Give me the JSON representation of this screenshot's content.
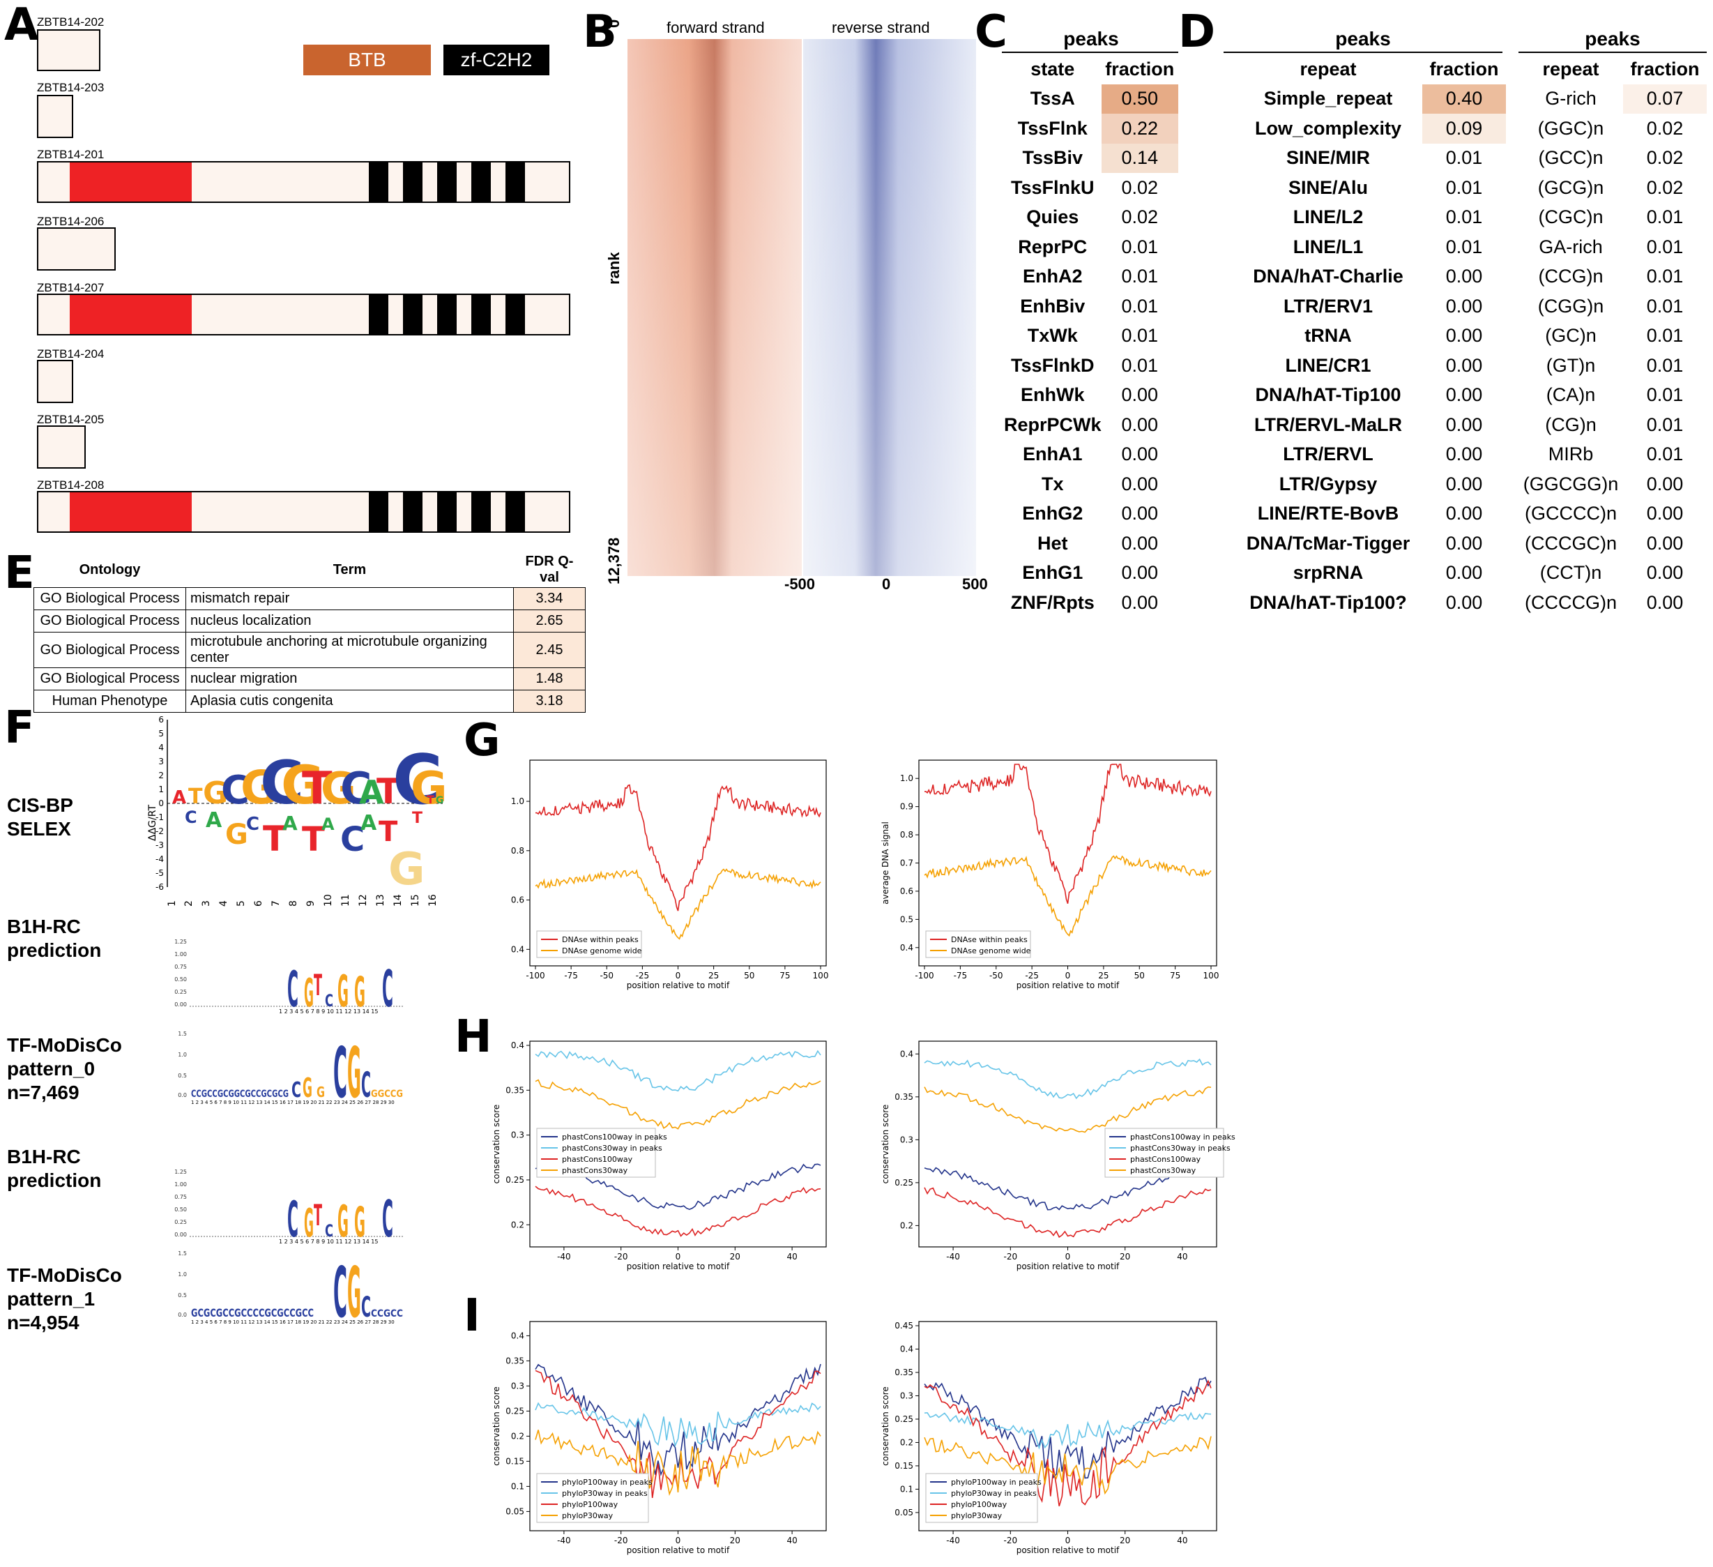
{
  "panels": {
    "A": "A",
    "B": "B",
    "C": "C",
    "D": "D",
    "E": "E",
    "F": "F",
    "G": "G",
    "H": "H",
    "I": "I"
  },
  "panelA": {
    "legend_btb": "BTB",
    "legend_zf": "zf-C2H2",
    "btb_color": "#c9642e",
    "zf_color": "#000000",
    "transcripts": [
      "ZBTB14-202",
      "ZBTB14-203",
      "ZBTB14-201",
      "ZBTB14-206",
      "ZBTB14-207",
      "ZBTB14-204",
      "ZBTB14-205",
      "ZBTB14-208"
    ]
  },
  "panelB": {
    "forward": "forward strand",
    "reverse": "reverse strand",
    "ytop": "0",
    "ylabel": "rank",
    "ybottom": "12,378",
    "xm500": "-500",
    "x0": "0",
    "x500": "500"
  },
  "panelC": {
    "peaks": "peaks",
    "state": "state",
    "fraction": "fraction",
    "rows": [
      {
        "s": "TssA",
        "f": "0.50"
      },
      {
        "s": "TssFlnk",
        "f": "0.22"
      },
      {
        "s": "TssBiv",
        "f": "0.14"
      },
      {
        "s": "TssFlnkU",
        "f": "0.02"
      },
      {
        "s": "Quies",
        "f": "0.02"
      },
      {
        "s": "ReprPC",
        "f": "0.01"
      },
      {
        "s": "EnhA2",
        "f": "0.01"
      },
      {
        "s": "EnhBiv",
        "f": "0.01"
      },
      {
        "s": "TxWk",
        "f": "0.01"
      },
      {
        "s": "TssFlnkD",
        "f": "0.01"
      },
      {
        "s": "EnhWk",
        "f": "0.00"
      },
      {
        "s": "ReprPCWk",
        "f": "0.00"
      },
      {
        "s": "EnhA1",
        "f": "0.00"
      },
      {
        "s": "Tx",
        "f": "0.00"
      },
      {
        "s": "EnhG2",
        "f": "0.00"
      },
      {
        "s": "Het",
        "f": "0.00"
      },
      {
        "s": "EnhG1",
        "f": "0.00"
      },
      {
        "s": "ZNF/Rpts",
        "f": "0.00"
      }
    ]
  },
  "panelD": {
    "peaks": "peaks",
    "repeat": "repeat",
    "fraction": "fraction",
    "rows": [
      {
        "r": "Simple_repeat",
        "f": "0.40",
        "r2": "G-rich",
        "f2": "0.07"
      },
      {
        "r": "Low_complexity",
        "f": "0.09",
        "r2": "(GGC)n",
        "f2": "0.02"
      },
      {
        "r": "SINE/MIR",
        "f": "0.01",
        "r2": "(GCC)n",
        "f2": "0.02"
      },
      {
        "r": "SINE/Alu",
        "f": "0.01",
        "r2": "(GCG)n",
        "f2": "0.02"
      },
      {
        "r": "LINE/L2",
        "f": "0.01",
        "r2": "(CGC)n",
        "f2": "0.01"
      },
      {
        "r": "LINE/L1",
        "f": "0.01",
        "r2": "GA-rich",
        "f2": "0.01"
      },
      {
        "r": "DNA/hAT-Charlie",
        "f": "0.00",
        "r2": "(CCG)n",
        "f2": "0.01"
      },
      {
        "r": "LTR/ERV1",
        "f": "0.00",
        "r2": "(CGG)n",
        "f2": "0.01"
      },
      {
        "r": "tRNA",
        "f": "0.00",
        "r2": "(GC)n",
        "f2": "0.01"
      },
      {
        "r": "LINE/CR1",
        "f": "0.00",
        "r2": "(GT)n",
        "f2": "0.01"
      },
      {
        "r": "DNA/hAT-Tip100",
        "f": "0.00",
        "r2": "(CA)n",
        "f2": "0.01"
      },
      {
        "r": "LTR/ERVL-MaLR",
        "f": "0.00",
        "r2": "(CG)n",
        "f2": "0.01"
      },
      {
        "r": "LTR/ERVL",
        "f": "0.00",
        "r2": "MIRb",
        "f2": "0.01"
      },
      {
        "r": "LTR/Gypsy",
        "f": "0.00",
        "r2": "(GGCGG)n",
        "f2": "0.00"
      },
      {
        "r": "LINE/RTE-BovB",
        "f": "0.00",
        "r2": "(GCCCC)n",
        "f2": "0.00"
      },
      {
        "r": "DNA/TcMar-Tigger",
        "f": "0.00",
        "r2": "(CCCGC)n",
        "f2": "0.00"
      },
      {
        "r": "srpRNA",
        "f": "0.00",
        "r2": "(CCT)n",
        "f2": "0.00"
      },
      {
        "r": "DNA/hAT-Tip100?",
        "f": "0.00",
        "r2": "(CCCCG)n",
        "f2": "0.00"
      }
    ]
  },
  "panelE": {
    "h1": "Ontology",
    "h2": "Term",
    "h3": "FDR Q-val",
    "rows": [
      {
        "o": "GO Biological Process",
        "t": "mismatch repair",
        "q": "3.34"
      },
      {
        "o": "GO Biological Process",
        "t": "nucleus localization",
        "q": "2.65"
      },
      {
        "o": "GO Biological Process",
        "t": "microtubule anchoring at microtubule organizing center",
        "q": "2.45"
      },
      {
        "o": "GO Biological Process",
        "t": "nuclear migration",
        "q": "1.48"
      },
      {
        "o": "Human Phenotype",
        "t": "Aplasia cutis congenita",
        "q": "3.18"
      }
    ]
  },
  "panelF": {
    "l1a": "CIS-BP",
    "l1b": "SELEX",
    "l2a": "B1H-RC",
    "l2b": "prediction",
    "l3a": "TF-MoDisCo",
    "l3b": "pattern_0",
    "l3c": "n=7,469",
    "l4a": "B1H-RC",
    "l4b": "prediction",
    "l5a": "TF-MoDisCo",
    "l5b": "pattern_1",
    "l5c": "n=4,954",
    "ddg": "ΔΔG/RT"
  },
  "chart_data": [
    {
      "type": "line",
      "panel": "G",
      "xlabel": "position relative to motif",
      "ylabel": "",
      "xlim": [
        -100,
        100
      ],
      "ylim": [
        0.35,
        1.15
      ],
      "series": [
        {
          "name": "DNAse within peaks",
          "color": "#dd2222"
        },
        {
          "name": "DNAse genome wide",
          "color": "#f5a000"
        }
      ]
    },
    {
      "type": "line",
      "panel": "G",
      "xlabel": "position relative to motif",
      "ylabel": "average DNA signal",
      "xlim": [
        -100,
        100
      ],
      "ylim": [
        0.35,
        1.05
      ],
      "series": [
        {
          "name": "DNAse within peaks",
          "color": "#dd2222"
        },
        {
          "name": "DNAse genome wide",
          "color": "#f5a000"
        }
      ]
    },
    {
      "type": "line",
      "panel": "H",
      "xlabel": "position relative to motif",
      "ylabel": "conservation score",
      "xlim": [
        -50,
        50
      ],
      "ylim": [
        0.18,
        0.4
      ],
      "series": [
        {
          "name": "phastCons100way in peaks",
          "color": "#22338a"
        },
        {
          "name": "phastCons30way in peaks",
          "color": "#66c4e8"
        },
        {
          "name": "phastCons100way",
          "color": "#dd2222"
        },
        {
          "name": "phastCons30way",
          "color": "#f5a000"
        }
      ]
    },
    {
      "type": "line",
      "panel": "H",
      "xlabel": "position relative to motif",
      "ylabel": "conservation score",
      "xlim": [
        -50,
        50
      ],
      "ylim": [
        0.18,
        0.41
      ],
      "series": [
        {
          "name": "phastCons100way in peaks",
          "color": "#22338a"
        },
        {
          "name": "phastCons30way in peaks",
          "color": "#66c4e8"
        },
        {
          "name": "phastCons100way",
          "color": "#dd2222"
        },
        {
          "name": "phastCons30way",
          "color": "#f5a000"
        }
      ]
    },
    {
      "type": "line",
      "panel": "I",
      "xlabel": "position relative to motif",
      "ylabel": "conservation score",
      "xlim": [
        -50,
        50
      ],
      "ylim": [
        0.02,
        0.42
      ],
      "series": [
        {
          "name": "phyloP100way in peaks",
          "color": "#22338a"
        },
        {
          "name": "phyloP30way in peaks",
          "color": "#66c4e8"
        },
        {
          "name": "phyloP100way",
          "color": "#dd2222"
        },
        {
          "name": "phyloP30way",
          "color": "#f5a000"
        }
      ]
    },
    {
      "type": "line",
      "panel": "I",
      "xlabel": "position relative to motif",
      "ylabel": "conservation score",
      "xlim": [
        -50,
        50
      ],
      "ylim": [
        0.02,
        0.45
      ],
      "series": [
        {
          "name": "phyloP100way in peaks",
          "color": "#22338a"
        },
        {
          "name": "phyloP30way in peaks",
          "color": "#66c4e8"
        },
        {
          "name": "phyloP100way",
          "color": "#dd2222"
        },
        {
          "name": "phyloP30way",
          "color": "#f5a000"
        }
      ]
    }
  ]
}
